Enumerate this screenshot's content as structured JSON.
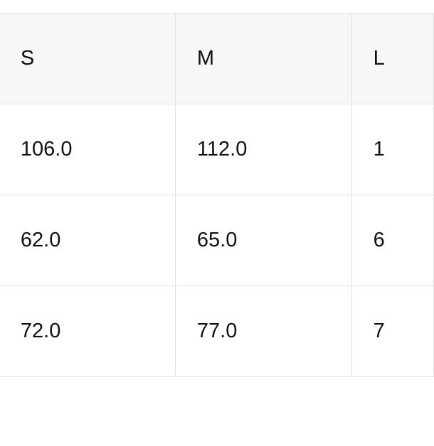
{
  "size_table": {
    "type": "table",
    "border_color": "#e2e2e2",
    "header_bg": "#f7f7f7",
    "cell_bg": "#ffffff",
    "text_color": "#111111",
    "font_size_pt": 22,
    "columns": {
      "stub": "",
      "s": "S",
      "m": "M",
      "l": "L"
    },
    "rows": [
      {
        "s": "106.0",
        "m": "112.0",
        "l": "1"
      },
      {
        "s": "62.0",
        "m": "65.0",
        "l": "6"
      },
      {
        "s": "72.0",
        "m": "77.0",
        "l": "7"
      }
    ]
  }
}
